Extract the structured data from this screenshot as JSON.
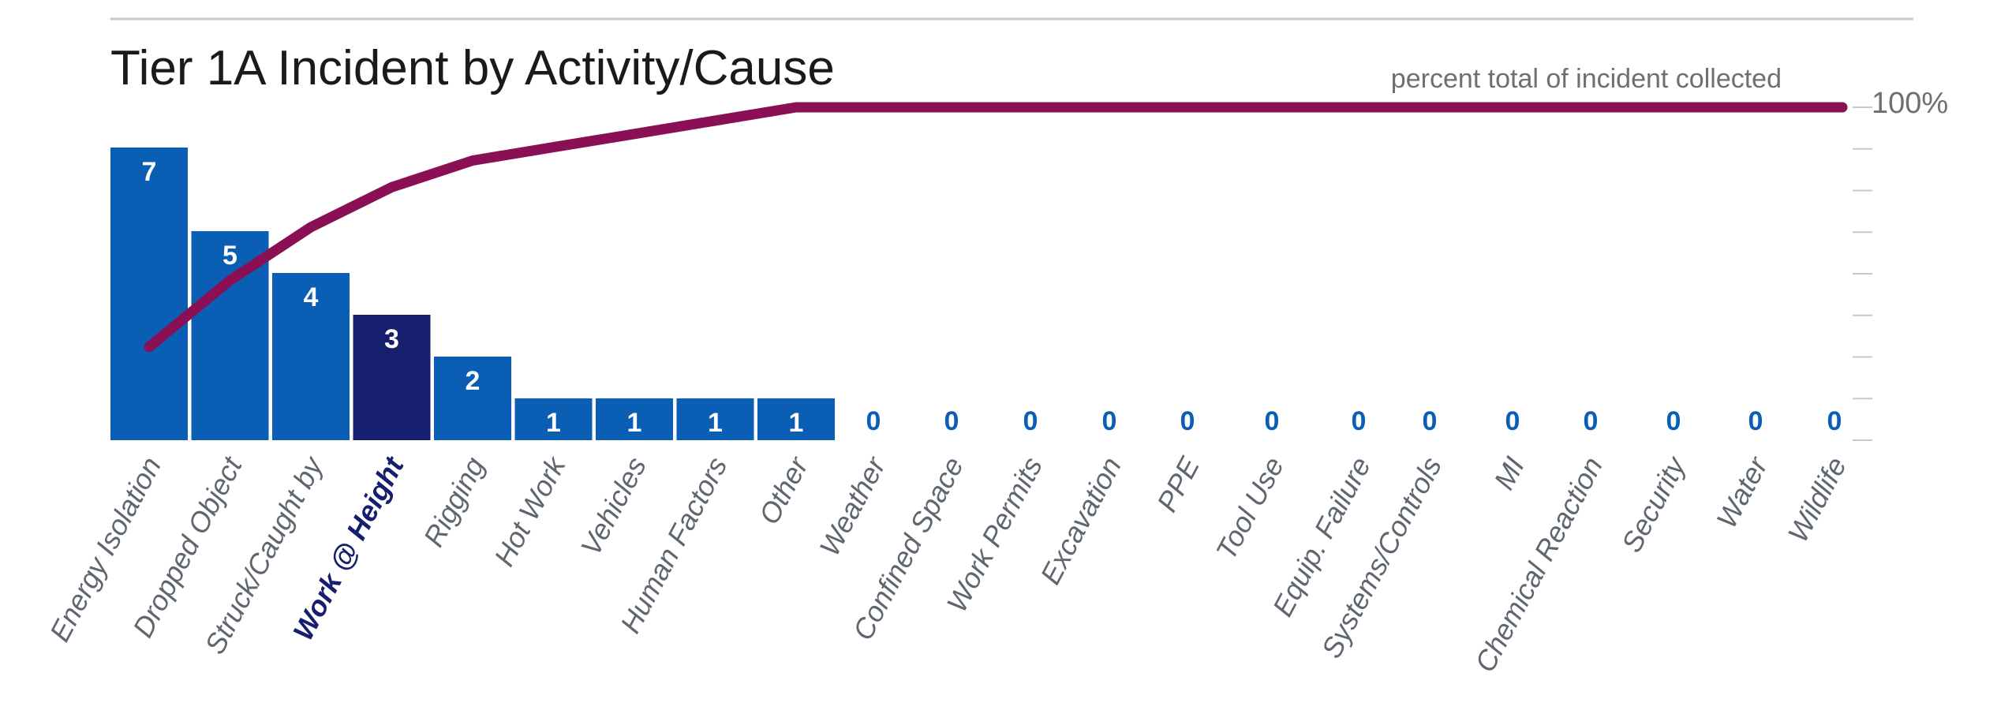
{
  "chart_data": {
    "type": "bar",
    "title": "Tier 1A Incident by Activity/Cause",
    "categories": [
      "Energy Isolation",
      "Dropped Object",
      "Struck/Caught by",
      "Work @ Height",
      "Rigging",
      "Hot Work",
      "Vehicles",
      "Human Factors",
      "Other",
      "Weather",
      "Confined Space",
      "Work Permits",
      "Excavation",
      "PPE",
      "Tool Use",
      "Equip. Failure",
      "Systems/Controls",
      "MI",
      "Chemical Reaction",
      "Security",
      "Water",
      "Wildlife"
    ],
    "values": [
      7,
      5,
      4,
      3,
      2,
      1,
      1,
      1,
      1,
      0,
      0,
      0,
      0,
      0,
      0,
      0,
      0,
      0,
      0,
      0,
      0,
      0
    ],
    "highlighted_category": "Work @ Height",
    "cumulative_line": {
      "label": "percent total of incident collected",
      "values_percent": [
        28,
        48,
        64,
        76,
        84,
        88,
        92,
        96,
        100,
        100,
        100,
        100,
        100,
        100,
        100,
        100,
        100,
        100,
        100,
        100,
        100,
        100
      ]
    },
    "secondary_axis": {
      "max_label": "100%",
      "ylim": [
        0,
        100
      ]
    },
    "ylim": [
      0,
      7
    ],
    "xlabel": "",
    "ylabel": "",
    "grid": false,
    "colors": {
      "bar": "#0a5fb4",
      "highlight_bar": "#161e6e",
      "line": "#8a0f55",
      "zero_label": "#0a5fb4",
      "axis_text": "#6e6e73"
    }
  }
}
